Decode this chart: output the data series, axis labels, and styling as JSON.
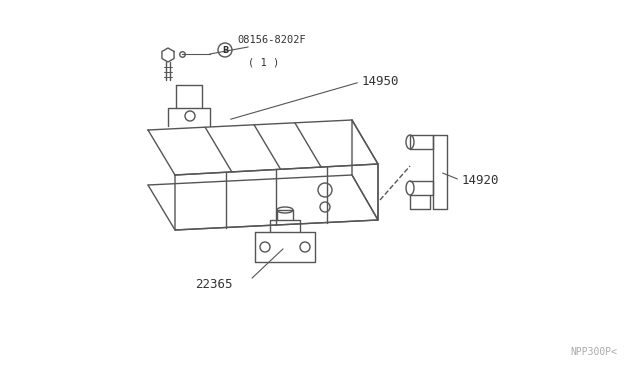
{
  "background_color": "#ffffff",
  "line_color": "#555555",
  "text_color": "#333333",
  "watermark_text": "NPP300P<",
  "watermark_color": "#aaaaaa",
  "parts": {
    "bolt_label": "B 08156-8202F\n( 1 )",
    "main_body_label": "14950",
    "valve_label": "14920",
    "sensor_label": "22365"
  },
  "figsize": [
    6.4,
    3.72
  ],
  "dpi": 100
}
